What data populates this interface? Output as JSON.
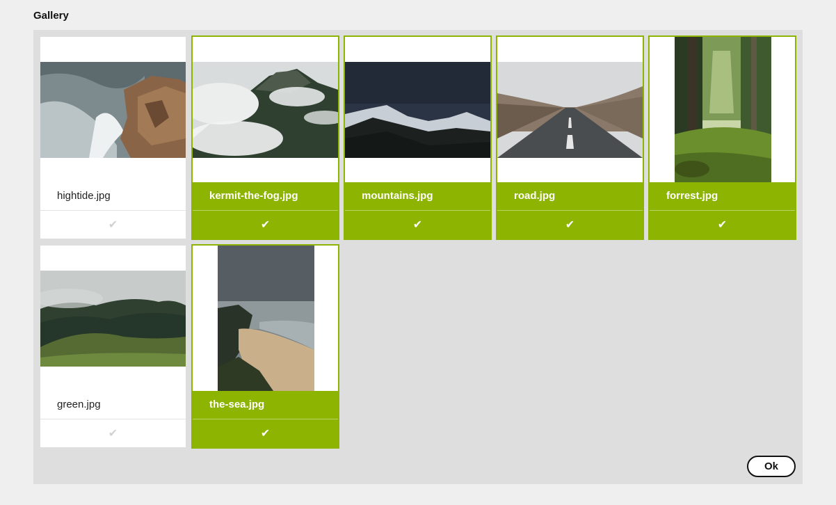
{
  "title": "Gallery",
  "accent_color": "#8db400",
  "items": [
    {
      "name": "hightide.jpg",
      "selected": false,
      "orientation": "landscape"
    },
    {
      "name": "kermit-the-fog.jpg",
      "selected": true,
      "orientation": "landscape"
    },
    {
      "name": "mountains.jpg",
      "selected": true,
      "orientation": "landscape"
    },
    {
      "name": "road.jpg",
      "selected": true,
      "orientation": "landscape"
    },
    {
      "name": "forrest.jpg",
      "selected": true,
      "orientation": "portrait"
    },
    {
      "name": "green.jpg",
      "selected": false,
      "orientation": "landscape"
    },
    {
      "name": "the-sea.jpg",
      "selected": true,
      "orientation": "portrait"
    }
  ],
  "check_icon": "check-icon",
  "ok_label": "Ok"
}
